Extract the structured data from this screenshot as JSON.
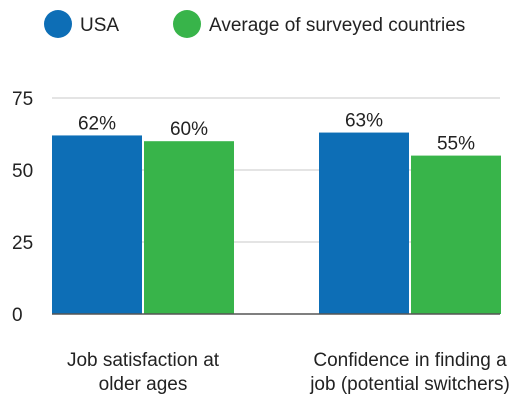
{
  "chart_data": {
    "type": "bar",
    "categories": [
      [
        "Job satisfaction at",
        "older ages"
      ],
      [
        "Confidence in finding a",
        "job (potential switchers)"
      ]
    ],
    "series": [
      {
        "name": "USA",
        "values": [
          62,
          63
        ],
        "labels": [
          "62%",
          "63%"
        ],
        "color": "#0D6EB6"
      },
      {
        "name": "Average of surveyed countries",
        "values": [
          60,
          55
        ],
        "labels": [
          "60%",
          "55%"
        ],
        "color": "#38B44A"
      }
    ],
    "y_ticks": [
      0,
      25,
      50,
      75
    ],
    "ylim": [
      0,
      75
    ],
    "grid": true,
    "legend": "top-left",
    "title": "",
    "xlabel": "",
    "ylabel": ""
  }
}
